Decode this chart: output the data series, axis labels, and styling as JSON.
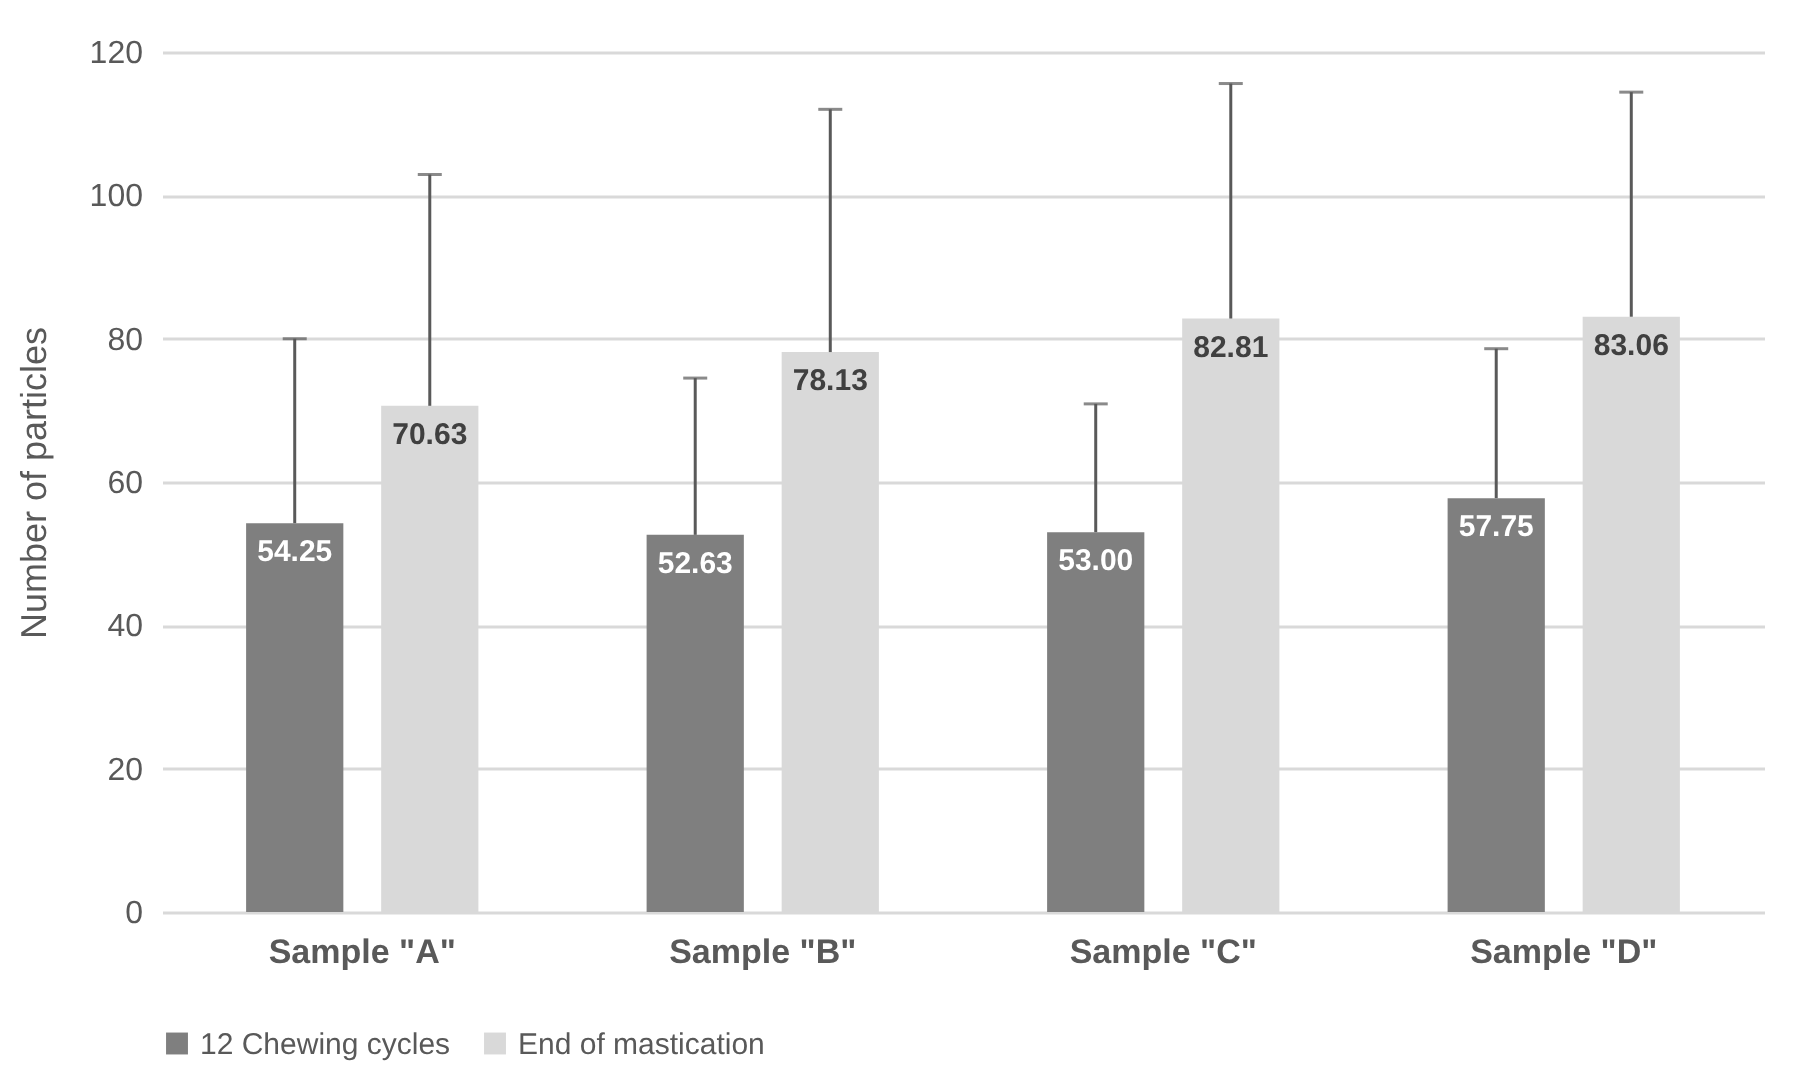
{
  "chart_data": {
    "type": "bar",
    "ylabel": "Number of particles",
    "categories": [
      "Sample \"A\"",
      "Sample \"B\"",
      "Sample \"C\"",
      "Sample \"D\""
    ],
    "series": [
      {
        "name": "12 Chewing cycles",
        "color": "#7f7f7f",
        "values": [
          54.25,
          52.63,
          53.0,
          57.75
        ],
        "errors": [
          [
            54.25,
            80.0
          ],
          [
            52.63,
            74.5
          ],
          [
            53.0,
            70.9
          ],
          [
            57.75,
            78.6
          ]
        ],
        "value_labels": [
          "54.25",
          "52.63",
          "53.00",
          "57.75"
        ]
      },
      {
        "name": "End of mastication",
        "color": "#d9d9d9",
        "values": [
          70.63,
          78.13,
          82.81,
          83.06
        ],
        "errors": [
          [
            70.63,
            102.9
          ],
          [
            78.13,
            112.0
          ],
          [
            82.81,
            115.6
          ],
          [
            83.06,
            114.4
          ]
        ],
        "value_labels": [
          "70.63",
          "78.13",
          "82.81",
          "83.06"
        ]
      }
    ],
    "ylim": [
      0,
      120
    ],
    "yticks": [
      0,
      20,
      40,
      60,
      80,
      100,
      120
    ],
    "grid": "y",
    "legend": "bottom"
  }
}
